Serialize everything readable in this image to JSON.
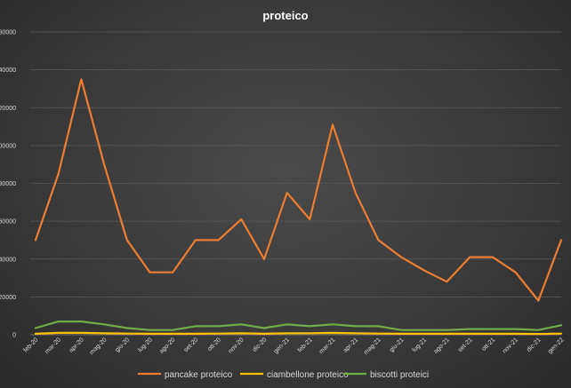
{
  "chart_data": {
    "type": "line",
    "title": "proteico",
    "xlabel": "",
    "ylabel": "",
    "categories": [
      "feb-20",
      "mar-20",
      "apr-20",
      "mag-20",
      "giu-20",
      "lug-20",
      "ago-20",
      "set-20",
      "ott-20",
      "nov-20",
      "dic-20",
      "gen-21",
      "feb-21",
      "mar-21",
      "apr-21",
      "mag-21",
      "giu-21",
      "lug-21",
      "ago-21",
      "set-21",
      "ott-21",
      "nov-21",
      "dic-21",
      "gen-22"
    ],
    "ytick_labels": [
      "0",
      "20000",
      "40000",
      "60000",
      "80000",
      "100000",
      "120000",
      "140000",
      "160000"
    ],
    "ylim": [
      0,
      160000
    ],
    "grid": true,
    "legend_position": "bottom",
    "series": [
      {
        "name": "pancake proteico",
        "color": "#ED7D31",
        "values": [
          50000,
          85000,
          135000,
          90000,
          50000,
          33000,
          33000,
          50000,
          50000,
          61000,
          40000,
          75000,
          61000,
          111000,
          75000,
          50000,
          41000,
          34000,
          28000,
          41000,
          41000,
          33000,
          18000,
          50000
        ]
      },
      {
        "name": "ciambellone proteico",
        "color": "#FFC000",
        "values": [
          500,
          1000,
          1000,
          800,
          600,
          500,
          500,
          500,
          600,
          800,
          500,
          800,
          800,
          1000,
          800,
          600,
          500,
          500,
          500,
          500,
          500,
          500,
          400,
          600
        ]
      },
      {
        "name": "biscotti proteici",
        "color": "#70AD47",
        "values": [
          3500,
          7000,
          7000,
          5500,
          3500,
          2500,
          2500,
          4500,
          4500,
          5500,
          3500,
          5500,
          4500,
          5500,
          4500,
          4500,
          2500,
          2500,
          2500,
          3000,
          3000,
          3000,
          2500,
          5000
        ]
      }
    ]
  }
}
